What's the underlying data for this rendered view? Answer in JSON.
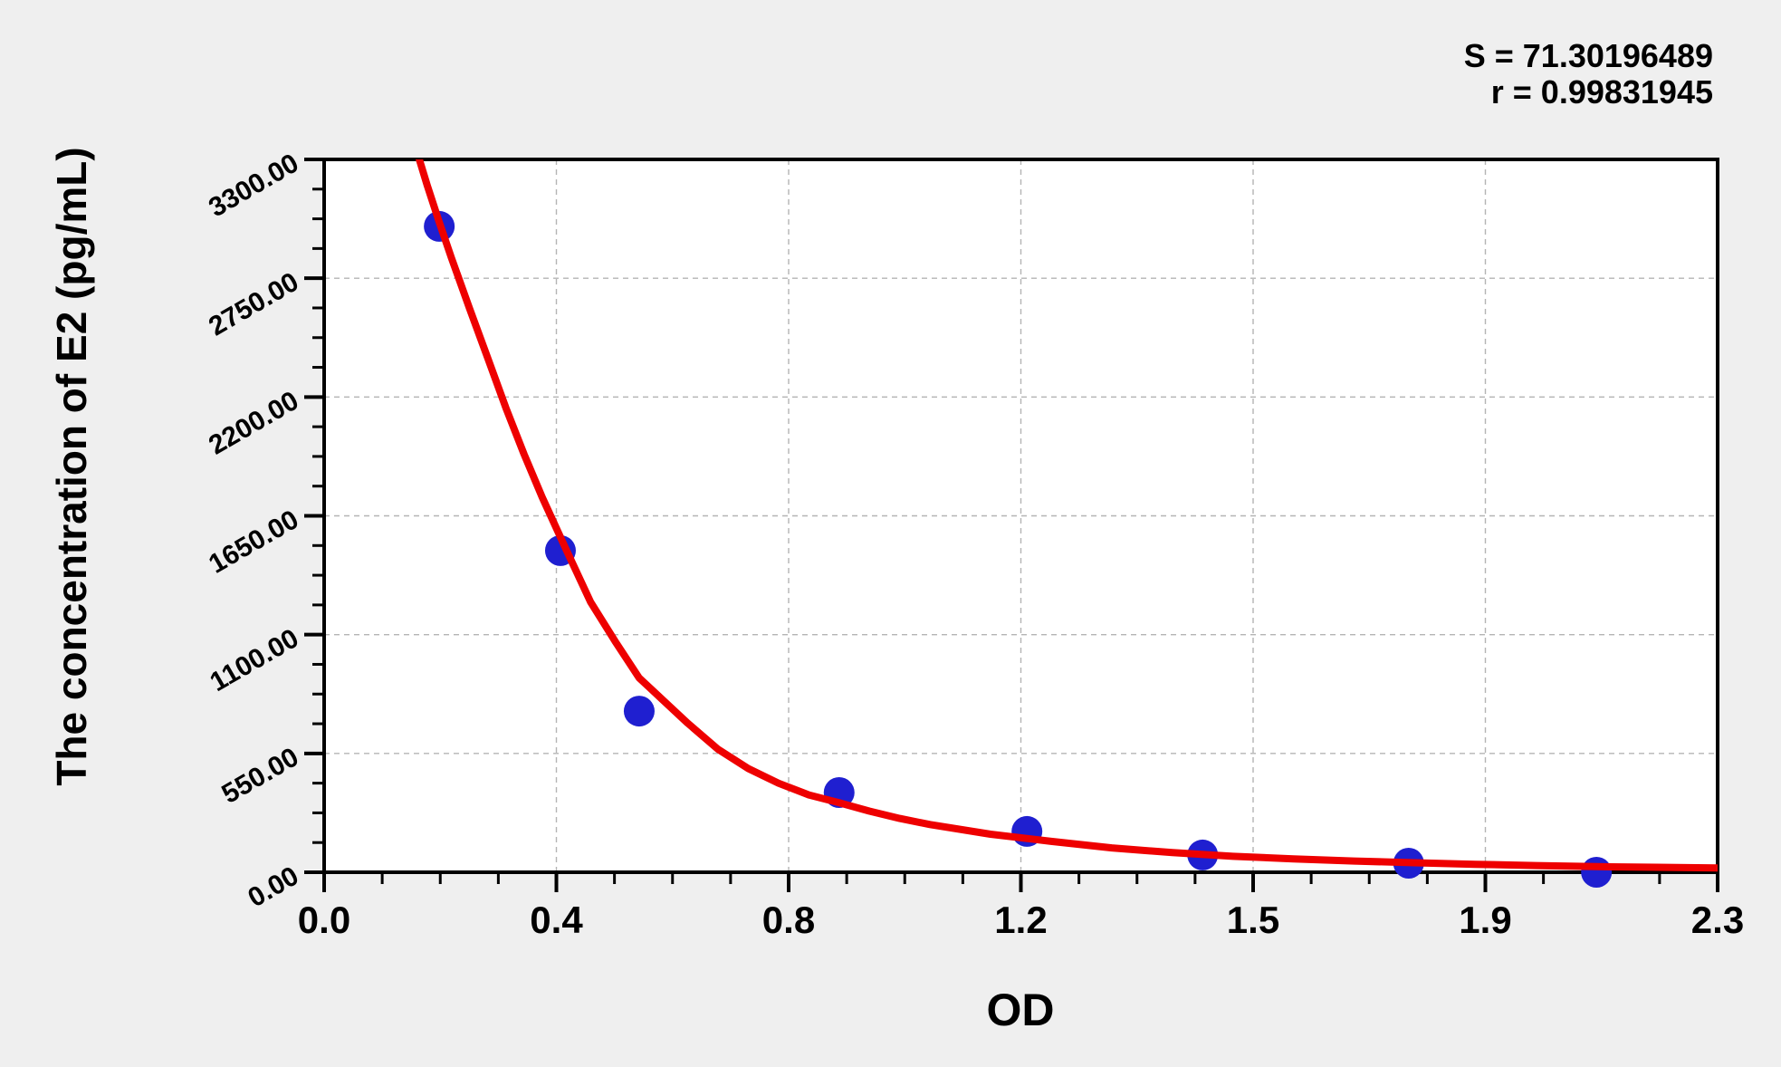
{
  "page": {
    "background_color": "#efefef",
    "plot_background_color": "#ffffff"
  },
  "stats": {
    "s_label": "S = 71.30196489",
    "r_label": "r = 0.99831945"
  },
  "chart_data": {
    "type": "scatter",
    "title": "",
    "xlabel": "OD",
    "ylabel": "The concentration of E2 (pg/mL)",
    "xlim": [
      0,
      2.3
    ],
    "ylim": [
      0,
      3300
    ],
    "grid": "dashed-major",
    "legend": "none",
    "minor_ticks_per_major_interval": 3,
    "x_ticks": {
      "values": [
        0,
        0.3833333,
        0.7666667,
        1.15,
        1.5333333,
        1.9166667,
        2.3
      ],
      "labels": [
        "0.0",
        "0.4",
        "0.8",
        "1.2",
        "1.5",
        "1.9",
        "2.3"
      ]
    },
    "y_ticks": {
      "values": [
        0,
        550,
        1100,
        1650,
        2200,
        2750,
        3300
      ],
      "labels": [
        "0.00",
        "550.00",
        "1100.00",
        "1650.00",
        "2200.00",
        "2750.00",
        "3300.00"
      ]
    },
    "colors": {
      "axis": "#000000",
      "grid": "#b4b4b4",
      "points": "#1f1fd0",
      "curve": "#ee0000"
    },
    "statistics": {
      "S": "71.30196489",
      "r": "0.99831945"
    },
    "series": [
      {
        "name": "standard-points",
        "type": "scatter",
        "marker_radius": 17,
        "points": [
          [
            0.19,
            2990
          ],
          [
            0.39,
            1489
          ],
          [
            0.52,
            746
          ],
          [
            0.85,
            369
          ],
          [
            1.16,
            189
          ],
          [
            1.45,
            80
          ],
          [
            1.79,
            42
          ],
          [
            2.1,
            0
          ]
        ]
      },
      {
        "name": "fitted-curve",
        "type": "line",
        "stroke_width": 8,
        "points": [
          [
            0.157,
            3300
          ],
          [
            0.17,
            3180
          ],
          [
            0.19,
            3010
          ],
          [
            0.21,
            2845
          ],
          [
            0.24,
            2610
          ],
          [
            0.27,
            2380
          ],
          [
            0.3,
            2150
          ],
          [
            0.33,
            1935
          ],
          [
            0.36,
            1735
          ],
          [
            0.4,
            1490
          ],
          [
            0.44,
            1250
          ],
          [
            0.48,
            1070
          ],
          [
            0.52,
            900
          ],
          [
            0.56,
            795
          ],
          [
            0.6,
            690
          ],
          [
            0.65,
            570
          ],
          [
            0.7,
            480
          ],
          [
            0.75,
            412
          ],
          [
            0.8,
            358
          ],
          [
            0.85,
            322
          ],
          [
            0.9,
            283
          ],
          [
            0.95,
            249
          ],
          [
            1.0,
            221
          ],
          [
            1.1,
            176
          ],
          [
            1.2,
            143
          ],
          [
            1.3,
            113
          ],
          [
            1.4,
            91
          ],
          [
            1.5,
            74
          ],
          [
            1.6,
            62
          ],
          [
            1.7,
            52
          ],
          [
            1.8,
            44
          ],
          [
            1.9,
            37
          ],
          [
            2.0,
            31
          ],
          [
            2.1,
            26
          ],
          [
            2.2,
            23
          ],
          [
            2.3,
            20
          ]
        ]
      }
    ]
  }
}
